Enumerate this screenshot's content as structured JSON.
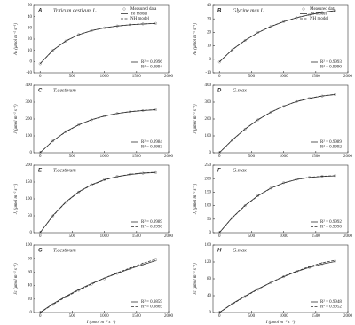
{
  "chart_data": [
    {
      "type": "line",
      "panel": "A",
      "species": "Triticum aestivum L.",
      "ylabel": "Aₙ (μmol m⁻² s⁻¹)",
      "xlim": [
        -100,
        2000
      ],
      "xticks": [
        0,
        500,
        1000,
        1500,
        2000
      ],
      "ylim": [
        -10,
        50
      ],
      "yticks": [
        -10,
        0,
        10,
        20,
        30,
        40,
        50
      ],
      "x": [
        0,
        200,
        400,
        600,
        800,
        1000,
        1200,
        1400,
        1600,
        1800
      ],
      "series": [
        {
          "name": "Measured data",
          "color": "#888888",
          "style": "points",
          "values": [
            -2,
            10,
            18.3,
            24,
            27.5,
            30,
            31.7,
            32.8,
            33.5,
            34
          ]
        },
        {
          "name": "Ye model",
          "color": "#333333",
          "style": "solid",
          "values": [
            -1.8,
            10.2,
            18.4,
            23.9,
            27.6,
            30,
            31.6,
            32.7,
            33.4,
            33.9
          ]
        },
        {
          "name": "NH model",
          "color": "#333333",
          "style": "dashed",
          "values": [
            -1.9,
            10.1,
            18.2,
            24,
            27.5,
            30.1,
            31.7,
            32.8,
            33.5,
            34
          ]
        }
      ],
      "annotations": [
        "R² = 0.9996",
        "R² = 0.9994"
      ]
    },
    {
      "type": "line",
      "panel": "B",
      "species": "Glycine max L.",
      "ylabel": "Aₙ (μmol m⁻² s⁻¹)",
      "xlim": [
        -100,
        2000
      ],
      "xticks": [
        0,
        500,
        1000,
        1500,
        2000
      ],
      "ylim": [
        -10,
        40
      ],
      "yticks": [
        -10,
        0,
        10,
        20,
        30,
        40
      ],
      "x": [
        0,
        200,
        400,
        600,
        800,
        1000,
        1200,
        1400,
        1600,
        1800
      ],
      "series": [
        {
          "name": "Measured data",
          "color": "#888888",
          "style": "points",
          "values": [
            -2,
            7,
            14,
            20,
            24.5,
            28,
            30.8,
            33,
            34.7,
            36
          ]
        },
        {
          "name": "Ye model",
          "color": "#333333",
          "style": "solid",
          "values": [
            -2,
            7.2,
            14.1,
            19.8,
            24.3,
            27.9,
            30.8,
            33,
            34.8,
            36.1
          ]
        },
        {
          "name": "NH model",
          "color": "#333333",
          "style": "dashed",
          "values": [
            -1.9,
            7.1,
            14,
            19.9,
            24.4,
            28,
            30.9,
            33.1,
            34.7,
            35.9
          ]
        }
      ],
      "annotations": [
        "R² = 0.9993",
        "R² = 0.9990"
      ]
    },
    {
      "type": "line",
      "panel": "C",
      "species": "T.aestivum",
      "ylabel": "J (μmol m⁻² s⁻¹)",
      "xlim": [
        -100,
        2000
      ],
      "xticks": [
        0,
        500,
        1000,
        1500,
        2000
      ],
      "ylim": [
        0,
        400
      ],
      "yticks": [
        0,
        100,
        200,
        300,
        400
      ],
      "x": [
        0,
        200,
        400,
        600,
        800,
        1000,
        1200,
        1400,
        1600,
        1800
      ],
      "series": [
        {
          "color": "#888888",
          "style": "points",
          "values": [
            0,
            70,
            125,
            165,
            195,
            218,
            233,
            243,
            250,
            255
          ]
        },
        {
          "color": "#333333",
          "style": "solid",
          "values": [
            0,
            71,
            126,
            166,
            196,
            218,
            233,
            243,
            250,
            255
          ]
        },
        {
          "color": "#333333",
          "style": "dashed",
          "values": [
            0,
            70,
            124,
            165,
            195,
            217,
            233,
            244,
            251,
            256
          ]
        }
      ],
      "annotations": [
        "R² = 0.9984",
        "R² = 0.9983"
      ]
    },
    {
      "type": "line",
      "panel": "D",
      "species": "G.max",
      "ylabel": "J (μmol m⁻² s⁻¹)",
      "xlim": [
        -100,
        2000
      ],
      "xticks": [
        0,
        500,
        1000,
        1500,
        2000
      ],
      "ylim": [
        0,
        400
      ],
      "yticks": [
        0,
        100,
        200,
        300,
        400
      ],
      "x": [
        0,
        200,
        400,
        600,
        800,
        1000,
        1200,
        1400,
        1600,
        1800
      ],
      "series": [
        {
          "color": "#888888",
          "style": "points",
          "values": [
            0,
            75,
            140,
            195,
            240,
            275,
            303,
            323,
            336,
            345
          ]
        },
        {
          "color": "#333333",
          "style": "solid",
          "values": [
            0,
            76,
            141,
            196,
            240,
            276,
            303,
            322,
            336,
            345
          ]
        },
        {
          "color": "#333333",
          "style": "dashed",
          "values": [
            0,
            75,
            140,
            195,
            241,
            276,
            304,
            323,
            337,
            346
          ]
        }
      ],
      "annotations": [
        "R² = 0.9989",
        "R² = 0.9992"
      ]
    },
    {
      "type": "line",
      "panel": "E",
      "species": "T.aestivum",
      "ylabel": "Jₑ (μmol m⁻² s⁻¹)",
      "xlim": [
        -100,
        2000
      ],
      "xticks": [
        0,
        500,
        1000,
        1500,
        2000
      ],
      "ylim": [
        0,
        200
      ],
      "yticks": [
        0,
        50,
        100,
        150,
        200
      ],
      "x": [
        0,
        200,
        400,
        600,
        800,
        1000,
        1200,
        1400,
        1600,
        1800
      ],
      "series": [
        {
          "color": "#888888",
          "style": "points",
          "values": [
            0,
            50,
            90,
            120,
            142,
            157,
            167,
            173,
            176,
            178
          ]
        },
        {
          "color": "#333333",
          "style": "solid",
          "values": [
            0,
            51,
            91,
            121,
            142,
            157,
            166,
            172,
            176,
            178
          ]
        },
        {
          "color": "#333333",
          "style": "dashed",
          "values": [
            0,
            50,
            90,
            120,
            141,
            156,
            166,
            173,
            177,
            179
          ]
        }
      ],
      "annotations": [
        "R² = 0.9989",
        "R² = 0.9990"
      ]
    },
    {
      "type": "line",
      "panel": "F",
      "species": "G.max",
      "ylabel": "Jₑ (μmol m⁻² s⁻¹)",
      "xlim": [
        -100,
        2000
      ],
      "xticks": [
        0,
        500,
        1000,
        1500,
        2000
      ],
      "ylim": [
        0,
        250
      ],
      "yticks": [
        0,
        50,
        100,
        150,
        200,
        250
      ],
      "x": [
        0,
        200,
        400,
        600,
        800,
        1000,
        1200,
        1400,
        1600,
        1800
      ],
      "series": [
        {
          "color": "#888888",
          "style": "points",
          "values": [
            0,
            55,
            100,
            137,
            165,
            185,
            198,
            205,
            209,
            211
          ]
        },
        {
          "color": "#333333",
          "style": "solid",
          "values": [
            0,
            56,
            101,
            137,
            165,
            184,
            197,
            204,
            208,
            210
          ]
        },
        {
          "color": "#333333",
          "style": "dashed",
          "values": [
            0,
            55,
            100,
            136,
            164,
            184,
            197,
            205,
            209,
            211
          ]
        }
      ],
      "annotations": [
        "R² = 0.9992",
        "R² = 0.9990"
      ]
    },
    {
      "type": "line",
      "panel": "G",
      "species": "T.aestivum",
      "ylabel": "Jc (μmol m⁻² s⁻¹)",
      "xlabel": "I (μmol m⁻² s⁻¹)",
      "xlim": [
        -100,
        2000
      ],
      "xticks": [
        0,
        500,
        1000,
        1500,
        2000
      ],
      "ylim": [
        0,
        100
      ],
      "yticks": [
        0,
        20,
        40,
        60,
        80,
        100
      ],
      "x": [
        0,
        200,
        400,
        600,
        800,
        1000,
        1200,
        1400,
        1600,
        1800
      ],
      "series": [
        {
          "color": "#888888",
          "style": "points",
          "values": [
            0,
            12,
            23,
            33,
            42,
            50,
            58,
            65,
            72,
            78
          ]
        },
        {
          "color": "#333333",
          "style": "solid",
          "values": [
            0,
            13,
            24,
            34,
            43,
            51,
            58,
            65,
            71,
            77
          ]
        },
        {
          "color": "#333333",
          "style": "dashed",
          "values": [
            0,
            12,
            23,
            33,
            42,
            51,
            59,
            66,
            73,
            79
          ]
        }
      ],
      "annotations": [
        "R² = 0.9859",
        "R² = 0.9869"
      ]
    },
    {
      "type": "line",
      "panel": "H",
      "species": "G.max",
      "ylabel": "Jc (μmol m⁻² s⁻¹)",
      "xlabel": "I (μmol m⁻² s⁻¹)",
      "xlim": [
        -100,
        2000
      ],
      "xticks": [
        0,
        500,
        1000,
        1500,
        2000
      ],
      "ylim": [
        0,
        160
      ],
      "yticks": [
        0,
        40,
        80,
        120,
        160
      ],
      "x": [
        0,
        200,
        400,
        600,
        800,
        1000,
        1200,
        1400,
        1600,
        1800
      ],
      "series": [
        {
          "color": "#888888",
          "style": "points",
          "values": [
            0,
            20,
            38,
            55,
            71,
            85,
            97,
            107,
            116,
            122
          ]
        },
        {
          "color": "#333333",
          "style": "solid",
          "values": [
            0,
            21,
            39,
            56,
            71,
            85,
            97,
            107,
            115,
            121
          ]
        },
        {
          "color": "#333333",
          "style": "dashed",
          "values": [
            0,
            20,
            38,
            55,
            71,
            86,
            98,
            109,
            118,
            124
          ]
        }
      ],
      "annotations": [
        "R² = 0.9948",
        "R² = 0.9952"
      ]
    }
  ]
}
